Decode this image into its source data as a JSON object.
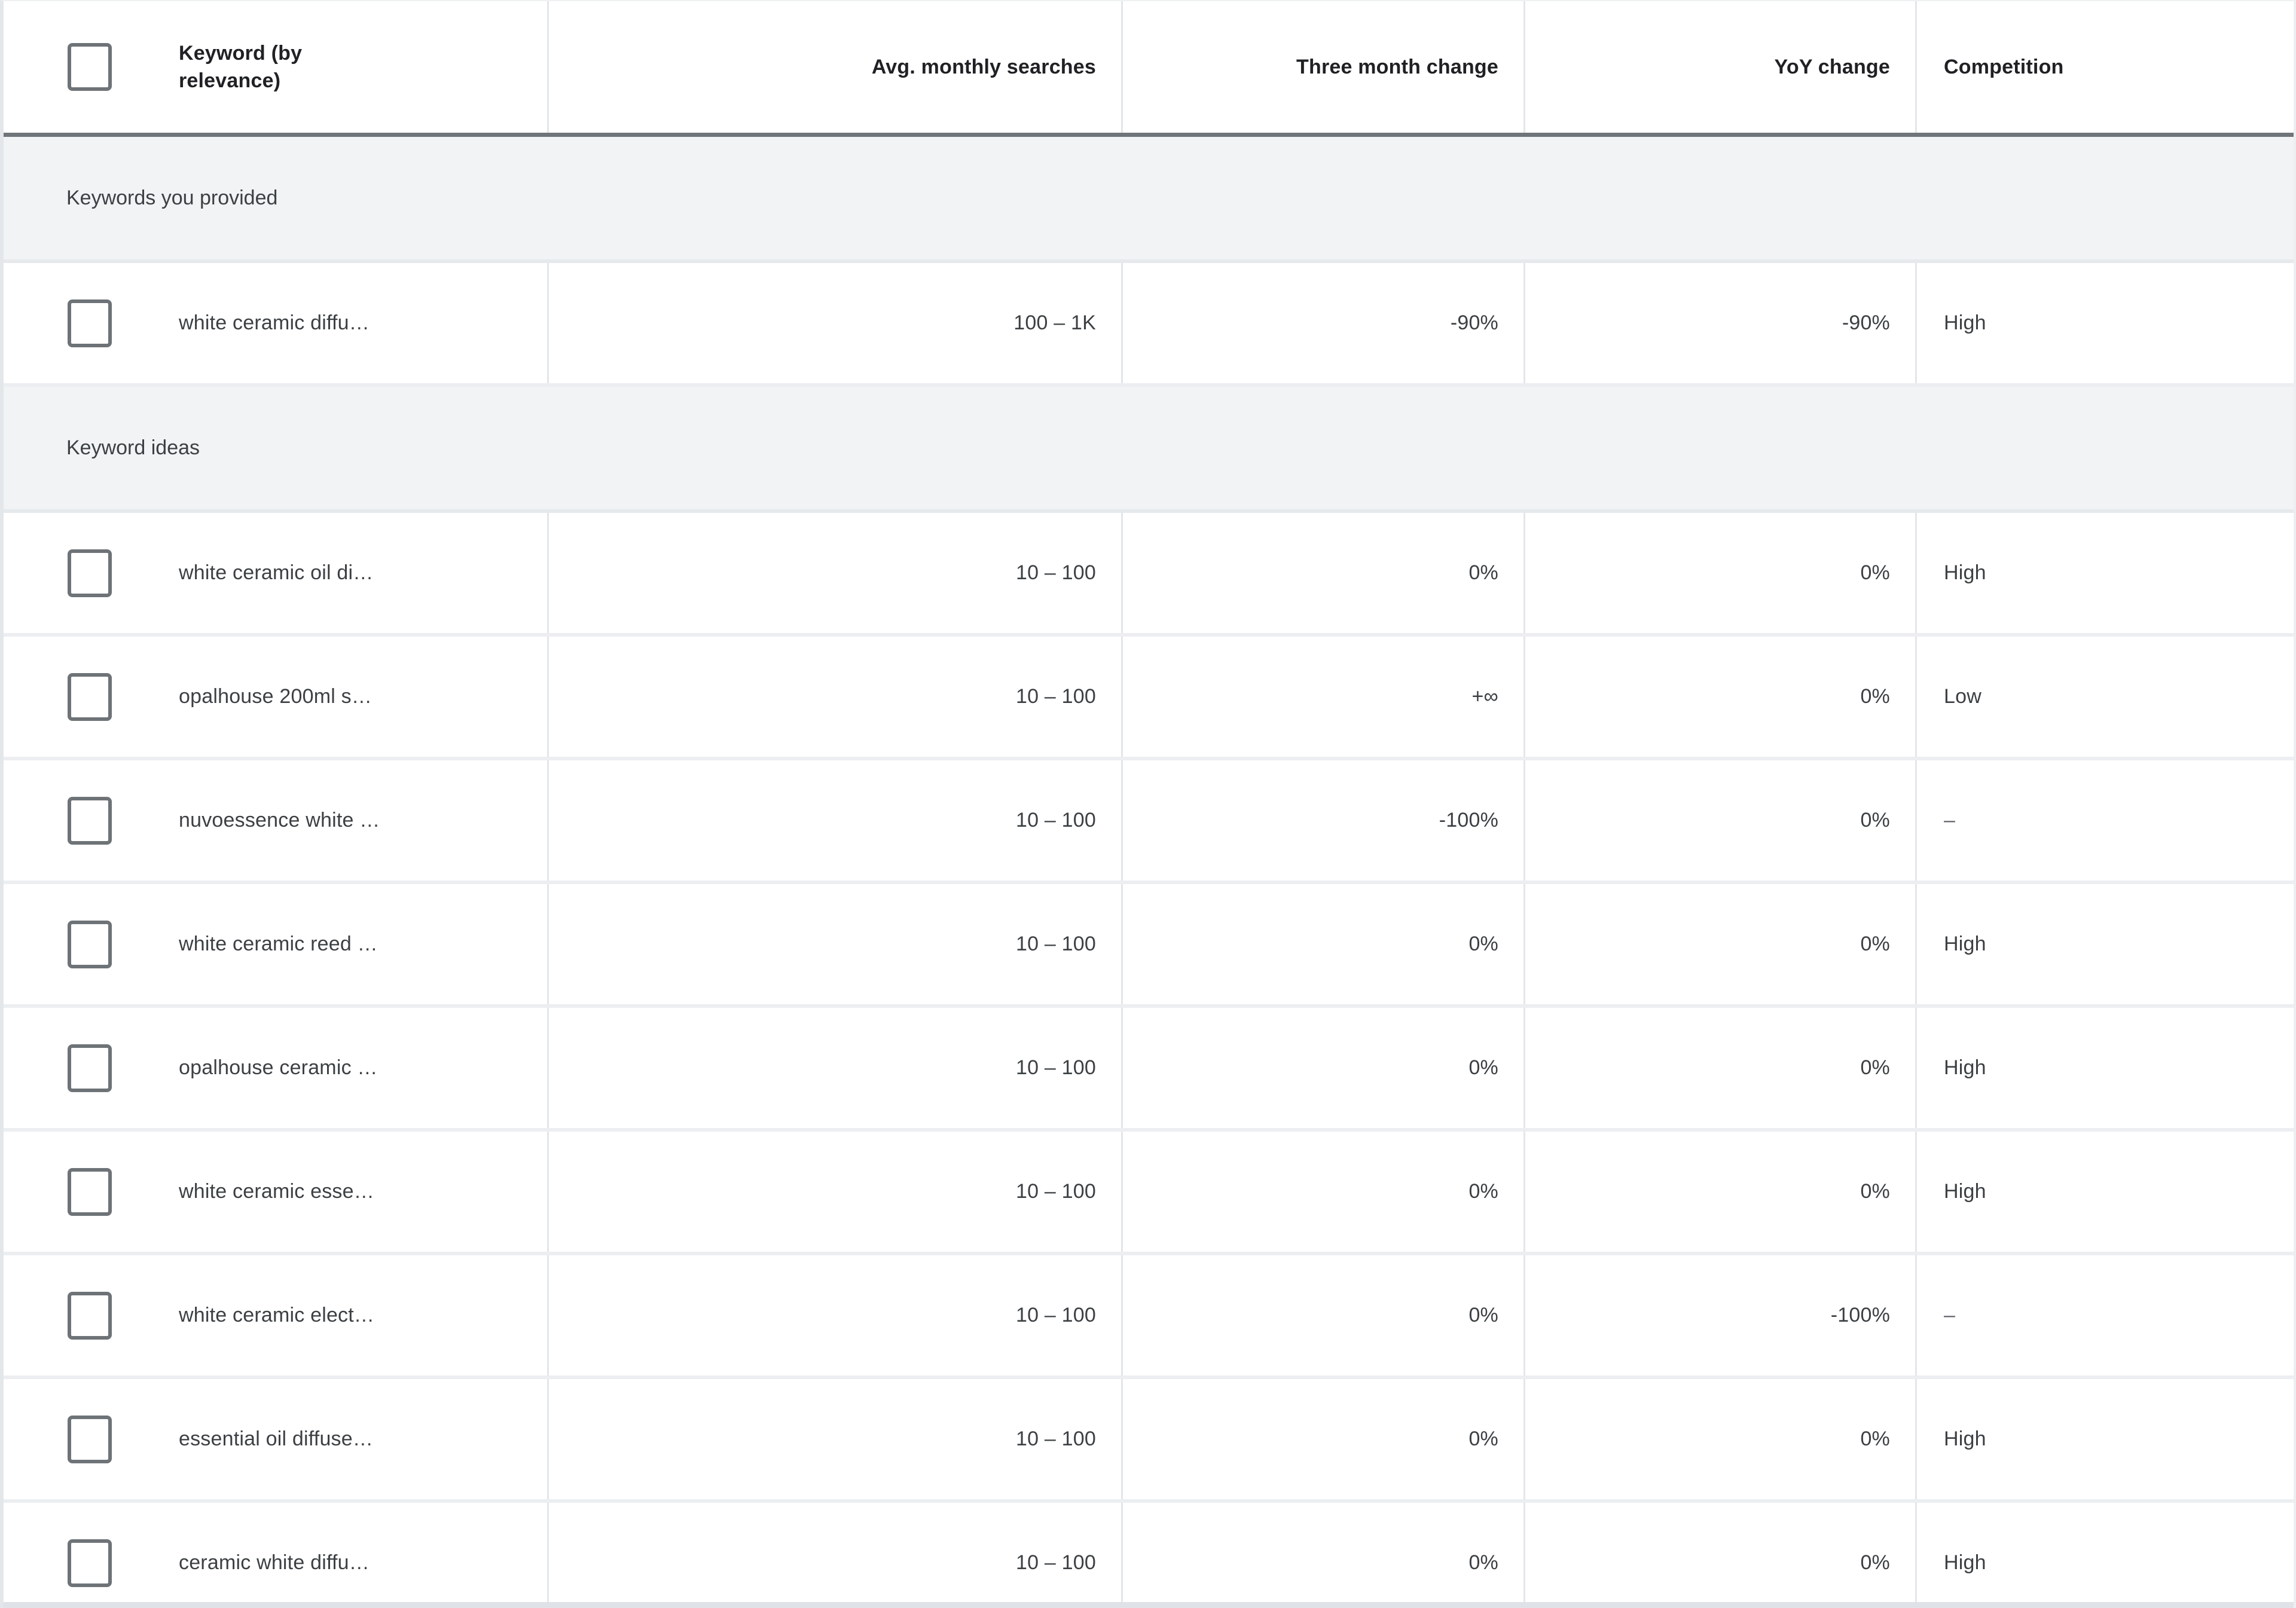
{
  "colors": {
    "header_text": "#202124",
    "body_text": "#3c4043",
    "muted_text": "#5f6368",
    "section_bg": "#f1f3f4",
    "grid_line": "#e3e6ea",
    "row_line": "#eceef1",
    "header_rule": "#70757a",
    "checkbox_border": "#6e7377",
    "bottom_edge": "#dfe2e7"
  },
  "table": {
    "columns": [
      {
        "label": "Keyword (by relevance)",
        "align": "left"
      },
      {
        "label": "Avg. monthly searches",
        "align": "right"
      },
      {
        "label": "Three month change",
        "align": "right"
      },
      {
        "label": "YoY change",
        "align": "right"
      },
      {
        "label": "Competition",
        "align": "left"
      }
    ],
    "sections": [
      {
        "label": "Keywords you provided",
        "rows": [
          {
            "keyword": "white ceramic diffu…",
            "avg_monthly_searches": "100 – 1K",
            "three_month_change": "-90%",
            "yoy_change": "-90%",
            "competition": "High"
          }
        ]
      },
      {
        "label": "Keyword ideas",
        "rows": [
          {
            "keyword": "white ceramic oil di…",
            "avg_monthly_searches": "10 – 100",
            "three_month_change": "0%",
            "yoy_change": "0%",
            "competition": "High"
          },
          {
            "keyword": "opalhouse 200ml s…",
            "avg_monthly_searches": "10 – 100",
            "three_month_change": "+∞",
            "yoy_change": "0%",
            "competition": "Low"
          },
          {
            "keyword": "nuvoessence white …",
            "avg_monthly_searches": "10 – 100",
            "three_month_change": "-100%",
            "yoy_change": "0%",
            "competition": "–"
          },
          {
            "keyword": "white ceramic reed …",
            "avg_monthly_searches": "10 – 100",
            "three_month_change": "0%",
            "yoy_change": "0%",
            "competition": "High"
          },
          {
            "keyword": "opalhouse ceramic …",
            "avg_monthly_searches": "10 – 100",
            "three_month_change": "0%",
            "yoy_change": "0%",
            "competition": "High"
          },
          {
            "keyword": "white ceramic esse…",
            "avg_monthly_searches": "10 – 100",
            "three_month_change": "0%",
            "yoy_change": "0%",
            "competition": "High"
          },
          {
            "keyword": "white ceramic elect…",
            "avg_monthly_searches": "10 – 100",
            "three_month_change": "0%",
            "yoy_change": "-100%",
            "competition": "–"
          },
          {
            "keyword": "essential oil diffuse…",
            "avg_monthly_searches": "10 – 100",
            "three_month_change": "0%",
            "yoy_change": "0%",
            "competition": "High"
          },
          {
            "keyword": "ceramic white diffu…",
            "avg_monthly_searches": "10 – 100",
            "three_month_change": "0%",
            "yoy_change": "0%",
            "competition": "High"
          }
        ]
      }
    ]
  }
}
